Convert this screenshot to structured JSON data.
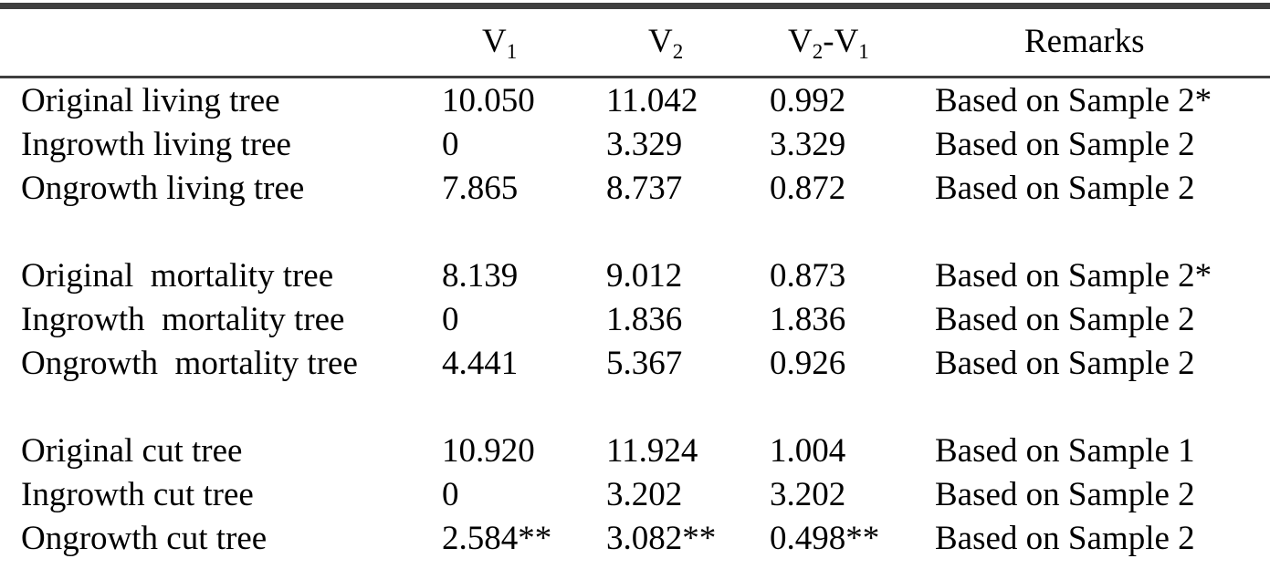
{
  "table": {
    "headers": {
      "label": "",
      "v1": {
        "base": "V",
        "sub": "1"
      },
      "v2": {
        "base": "V",
        "sub": "2"
      },
      "diff": {
        "a_base": "V",
        "a_sub": "2",
        "sep": "-",
        "b_base": "V",
        "b_sub": "1"
      },
      "remarks": "Remarks"
    },
    "rows": [
      {
        "label": "Original living tree",
        "v1": "10.050",
        "v2": "11.042",
        "diff": "0.992",
        "remarks": "Based on Sample 2*"
      },
      {
        "label": "Ingrowth living tree",
        "v1": "0",
        "v2": "3.329",
        "diff": "3.329",
        "remarks": "Based on Sample 2"
      },
      {
        "label": "Ongrowth living tree",
        "v1": "7.865",
        "v2": "8.737",
        "diff": "0.872",
        "remarks": "Based on Sample 2"
      },
      {
        "label": "Original  mortality tree",
        "v1": "8.139",
        "v2": "9.012",
        "diff": "0.873",
        "remarks": "Based on Sample 2*"
      },
      {
        "label": "Ingrowth  mortality tree",
        "v1": "0",
        "v2": "1.836",
        "diff": "1.836",
        "remarks": "Based on Sample 2"
      },
      {
        "label": "Ongrowth  mortality tree",
        "v1": "4.441",
        "v2": "5.367",
        "diff": "0.926",
        "remarks": "Based on Sample 2"
      },
      {
        "label": "Original cut tree",
        "v1": "10.920",
        "v2": "11.924",
        "diff": "1.004",
        "remarks": "Based on Sample 1"
      },
      {
        "label": "Ingrowth cut tree",
        "v1": "0",
        "v2": "3.202",
        "diff": "3.202",
        "remarks": "Based on Sample 2"
      },
      {
        "label": "Ongrowth cut tree",
        "v1": "2.584**",
        "v2": "3.082**",
        "diff": "0.498**",
        "remarks": "Based on Sample 2"
      }
    ]
  }
}
